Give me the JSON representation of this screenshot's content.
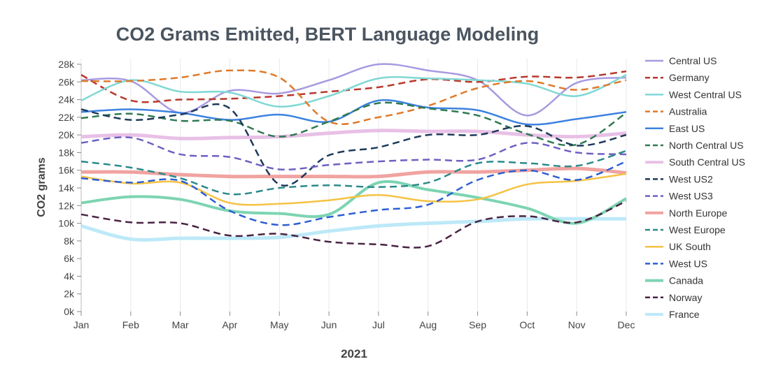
{
  "chart_data": {
    "type": "line",
    "title": "CO2 Grams Emitted, BERT Language Modeling",
    "xlabel": "2021",
    "ylabel": "CO2 grams",
    "ylim": [
      0,
      28000
    ],
    "yticks": [
      0,
      2000,
      4000,
      6000,
      8000,
      10000,
      12000,
      14000,
      16000,
      18000,
      20000,
      22000,
      24000,
      26000,
      28000
    ],
    "ytick_labels": [
      "0k",
      "2k",
      "4k",
      "6k",
      "8k",
      "10k",
      "12k",
      "14k",
      "16k",
      "18k",
      "20k",
      "22k",
      "24k",
      "26k",
      "28k"
    ],
    "categories": [
      "Jan",
      "Feb",
      "Mar",
      "Apr",
      "May",
      "Jun",
      "Jul",
      "Aug",
      "Sep",
      "Oct",
      "Nov",
      "Dec"
    ],
    "grid": "vertical",
    "legend": "right",
    "series": [
      {
        "name": "Central US",
        "color": "#a89ae0",
        "dash": false,
        "width": 2.5,
        "values": [
          26200,
          26100,
          22500,
          25000,
          24700,
          26200,
          28000,
          27300,
          26200,
          22200,
          25900,
          26500
        ]
      },
      {
        "name": "Germany",
        "color": "#b8382c",
        "dash": true,
        "width": 2.5,
        "values": [
          26800,
          23900,
          24000,
          24100,
          24400,
          24900,
          25400,
          26300,
          26000,
          26600,
          26500,
          27200
        ]
      },
      {
        "name": "West Central US",
        "color": "#7fd8d4",
        "dash": false,
        "width": 2.5,
        "values": [
          23900,
          26200,
          24900,
          24800,
          23200,
          24400,
          26400,
          26400,
          26200,
          25800,
          24400,
          26800
        ]
      },
      {
        "name": "Australia",
        "color": "#de7a2a",
        "dash": true,
        "width": 2.5,
        "values": [
          26100,
          26100,
          26500,
          27300,
          26500,
          21500,
          22000,
          23300,
          25300,
          26100,
          25100,
          26200
        ]
      },
      {
        "name": "East US",
        "color": "#3d82e0",
        "dash": false,
        "width": 2.5,
        "values": [
          22600,
          22900,
          22500,
          21700,
          22300,
          21500,
          23900,
          23100,
          22800,
          21200,
          21800,
          22600
        ]
      },
      {
        "name": "North Central US",
        "color": "#2f7a52",
        "dash": true,
        "width": 2.5,
        "values": [
          21900,
          22400,
          21600,
          21600,
          19800,
          21500,
          23600,
          23000,
          22200,
          20100,
          18900,
          22500
        ]
      },
      {
        "name": "South Central US",
        "color": "#e8c0e6",
        "dash": false,
        "width": 5,
        "values": [
          19800,
          20000,
          19600,
          19700,
          19800,
          20200,
          20500,
          20400,
          20400,
          20000,
          19800,
          20200
        ]
      },
      {
        "name": "West US2",
        "color": "#1e3a5a",
        "dash": true,
        "width": 2.5,
        "values": [
          22900,
          21700,
          22300,
          23000,
          14400,
          17700,
          18600,
          20000,
          20000,
          21000,
          18800,
          20000
        ]
      },
      {
        "name": "West US3",
        "color": "#6e60c2",
        "dash": true,
        "width": 2.5,
        "values": [
          19100,
          19700,
          17800,
          17500,
          16100,
          16600,
          17000,
          17200,
          17200,
          19100,
          18000,
          17800
        ]
      },
      {
        "name": "North Europe",
        "color": "#f0a3a0",
        "dash": false,
        "width": 5,
        "values": [
          15800,
          15800,
          15500,
          15300,
          15300,
          15300,
          15300,
          15800,
          15800,
          16000,
          16200,
          15700
        ]
      },
      {
        "name": "West Europe",
        "color": "#2b8a8a",
        "dash": true,
        "width": 2.5,
        "values": [
          17000,
          16300,
          15100,
          13300,
          14000,
          14300,
          14100,
          14600,
          16800,
          16800,
          16500,
          18200
        ]
      },
      {
        "name": "UK South",
        "color": "#f5c244",
        "dash": false,
        "width": 2.5,
        "values": [
          15300,
          14500,
          14600,
          12300,
          12200,
          12600,
          13200,
          12500,
          12700,
          14400,
          14800,
          15600
        ]
      },
      {
        "name": "West US",
        "color": "#2d5fd2",
        "dash": true,
        "width": 2.5,
        "values": [
          15100,
          14600,
          14800,
          11400,
          9800,
          10700,
          11500,
          12100,
          14900,
          16000,
          14900,
          17000
        ]
      },
      {
        "name": "Canada",
        "color": "#7dd4b2",
        "dash": false,
        "width": 4,
        "values": [
          12300,
          13000,
          12700,
          11400,
          11100,
          11000,
          14600,
          13800,
          12900,
          11700,
          10000,
          12800
        ]
      },
      {
        "name": "Norway",
        "color": "#4a2344",
        "dash": true,
        "width": 2.5,
        "values": [
          11000,
          10100,
          10000,
          8600,
          8800,
          7900,
          7600,
          7400,
          10200,
          10800,
          10100,
          12500
        ]
      },
      {
        "name": "France",
        "color": "#bde9f8",
        "dash": false,
        "width": 5,
        "values": [
          9700,
          8200,
          8300,
          8300,
          8400,
          9100,
          9700,
          10000,
          10200,
          10500,
          10500,
          10500
        ]
      }
    ]
  }
}
